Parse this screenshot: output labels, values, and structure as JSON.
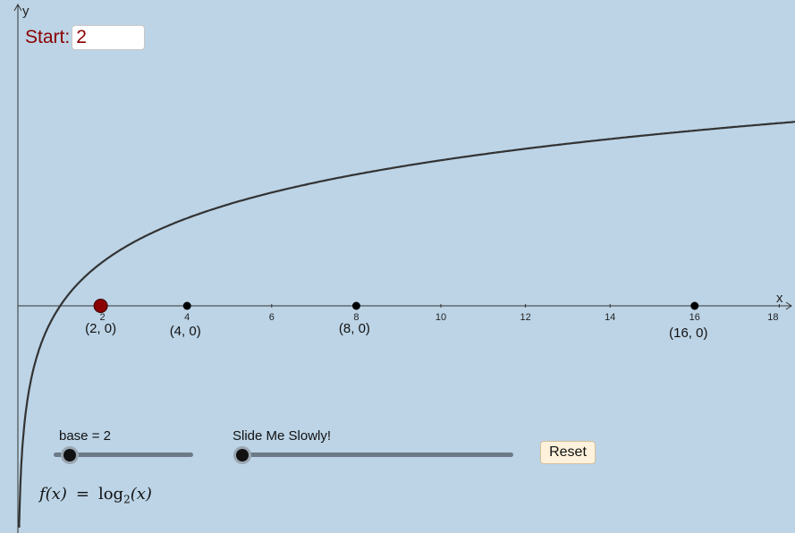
{
  "input": {
    "label": "Start:",
    "value": "2"
  },
  "axes": {
    "x_label": "x",
    "y_label": "y"
  },
  "x_ticks": [
    "2",
    "4",
    "6",
    "8",
    "10",
    "12",
    "14",
    "16",
    "18"
  ],
  "points": [
    {
      "label": "(2, 0)",
      "x": 2,
      "highlighted": true,
      "color": "#8b0000"
    },
    {
      "label": "(4, 0)",
      "x": 4,
      "highlighted": false,
      "color": "#000000"
    },
    {
      "label": "(8, 0)",
      "x": 8,
      "highlighted": false,
      "color": "#000000"
    },
    {
      "label": "(16, 0)",
      "x": 16,
      "highlighted": false,
      "color": "#000000"
    }
  ],
  "sliders": {
    "base": {
      "label": "base = 2",
      "value": 2
    },
    "slide": {
      "label": "Slide Me Slowly!"
    }
  },
  "reset_label": "Reset",
  "formula": {
    "lhs": "f(x)",
    "eq": "=",
    "fn": "log",
    "base": "2",
    "arg": "(x)"
  },
  "function": {
    "base": 2
  },
  "colors": {
    "background": "#bcd4e6",
    "curve": "#333333",
    "highlight": "#8b0000"
  }
}
